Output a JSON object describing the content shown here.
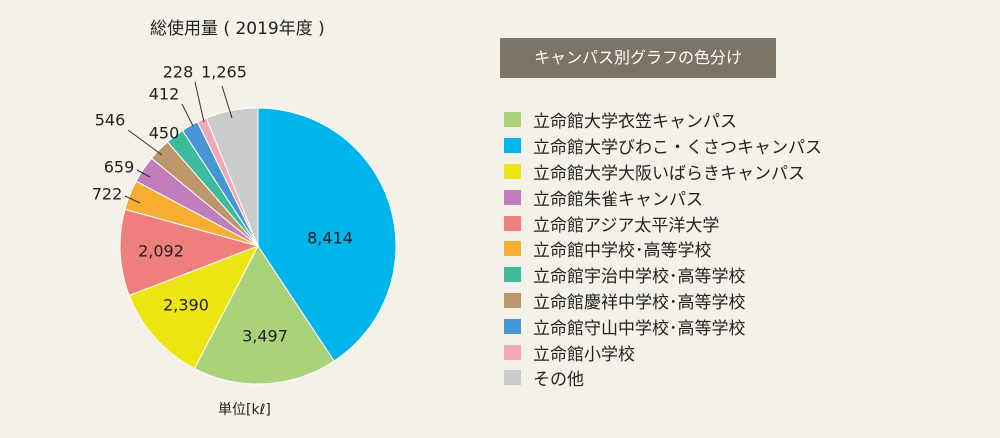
{
  "chart_data": {
    "type": "pie",
    "title": "総使用量 ( 2019年度 )",
    "unit": "単位[kℓ]",
    "start_angle_deg": 0,
    "direction": "clockwise",
    "slices": [
      {
        "name": "立命館大学びわこ・くさつキャンパス",
        "value": 8414,
        "label": "8,414",
        "color": "#00b4ec"
      },
      {
        "name": "立命館大学衣笠キャンパス",
        "value": 3497,
        "label": "3,497",
        "color": "#a9d27a"
      },
      {
        "name": "立命館大学大阪いばらきキャンパス",
        "value": 2390,
        "label": "2,390",
        "color": "#ede514"
      },
      {
        "name": "立命館アジア太平洋大学",
        "value": 2092,
        "label": "2,092",
        "color": "#ef7f7d"
      },
      {
        "name": "立命館中学校･高等学校",
        "value": 722,
        "label": "722",
        "color": "#f7ac32"
      },
      {
        "name": "立命館朱雀キャンパス",
        "value": 659,
        "label": "659",
        "color": "#c07ebc"
      },
      {
        "name": "立命館慶祥中学校･高等学校",
        "value": 546,
        "label": "546",
        "color": "#bd966a"
      },
      {
        "name": "立命館宇治中学校･高等学校",
        "value": 450,
        "label": "450",
        "color": "#3dbb9f"
      },
      {
        "name": "立命館守山中学校･高等学校",
        "value": 412,
        "label": "412",
        "color": "#4696d6"
      },
      {
        "name": "立命館小学校",
        "value": 228,
        "label": "228",
        "color": "#f4a7b7"
      },
      {
        "name": "その他",
        "value": 1265,
        "label": "1,265",
        "color": "#cbcbcb"
      }
    ]
  },
  "legend": {
    "header": "キャンパス別グラフの色分け",
    "items": [
      {
        "label": "立命館大学衣笠キャンパス",
        "color": "#a9d27a"
      },
      {
        "label": "立命館大学びわこ・くさつキャンパス",
        "color": "#00b4ec"
      },
      {
        "label": "立命館大学大阪いばらきキャンパス",
        "color": "#ede514"
      },
      {
        "label": "立命館朱雀キャンパス",
        "color": "#c07ebc"
      },
      {
        "label": "立命館アジア太平洋大学",
        "color": "#ef7f7d"
      },
      {
        "label": "立命館中学校･高等学校",
        "color": "#f7ac32"
      },
      {
        "label": "立命館宇治中学校･高等学校",
        "color": "#3dbb9f"
      },
      {
        "label": "立命館慶祥中学校･高等学校",
        "color": "#bd966a"
      },
      {
        "label": "立命館守山中学校･高等学校",
        "color": "#4696d6"
      },
      {
        "label": "立命館小学校",
        "color": "#f4a7b7"
      },
      {
        "label": "その他",
        "color": "#cbcbcb"
      }
    ]
  }
}
